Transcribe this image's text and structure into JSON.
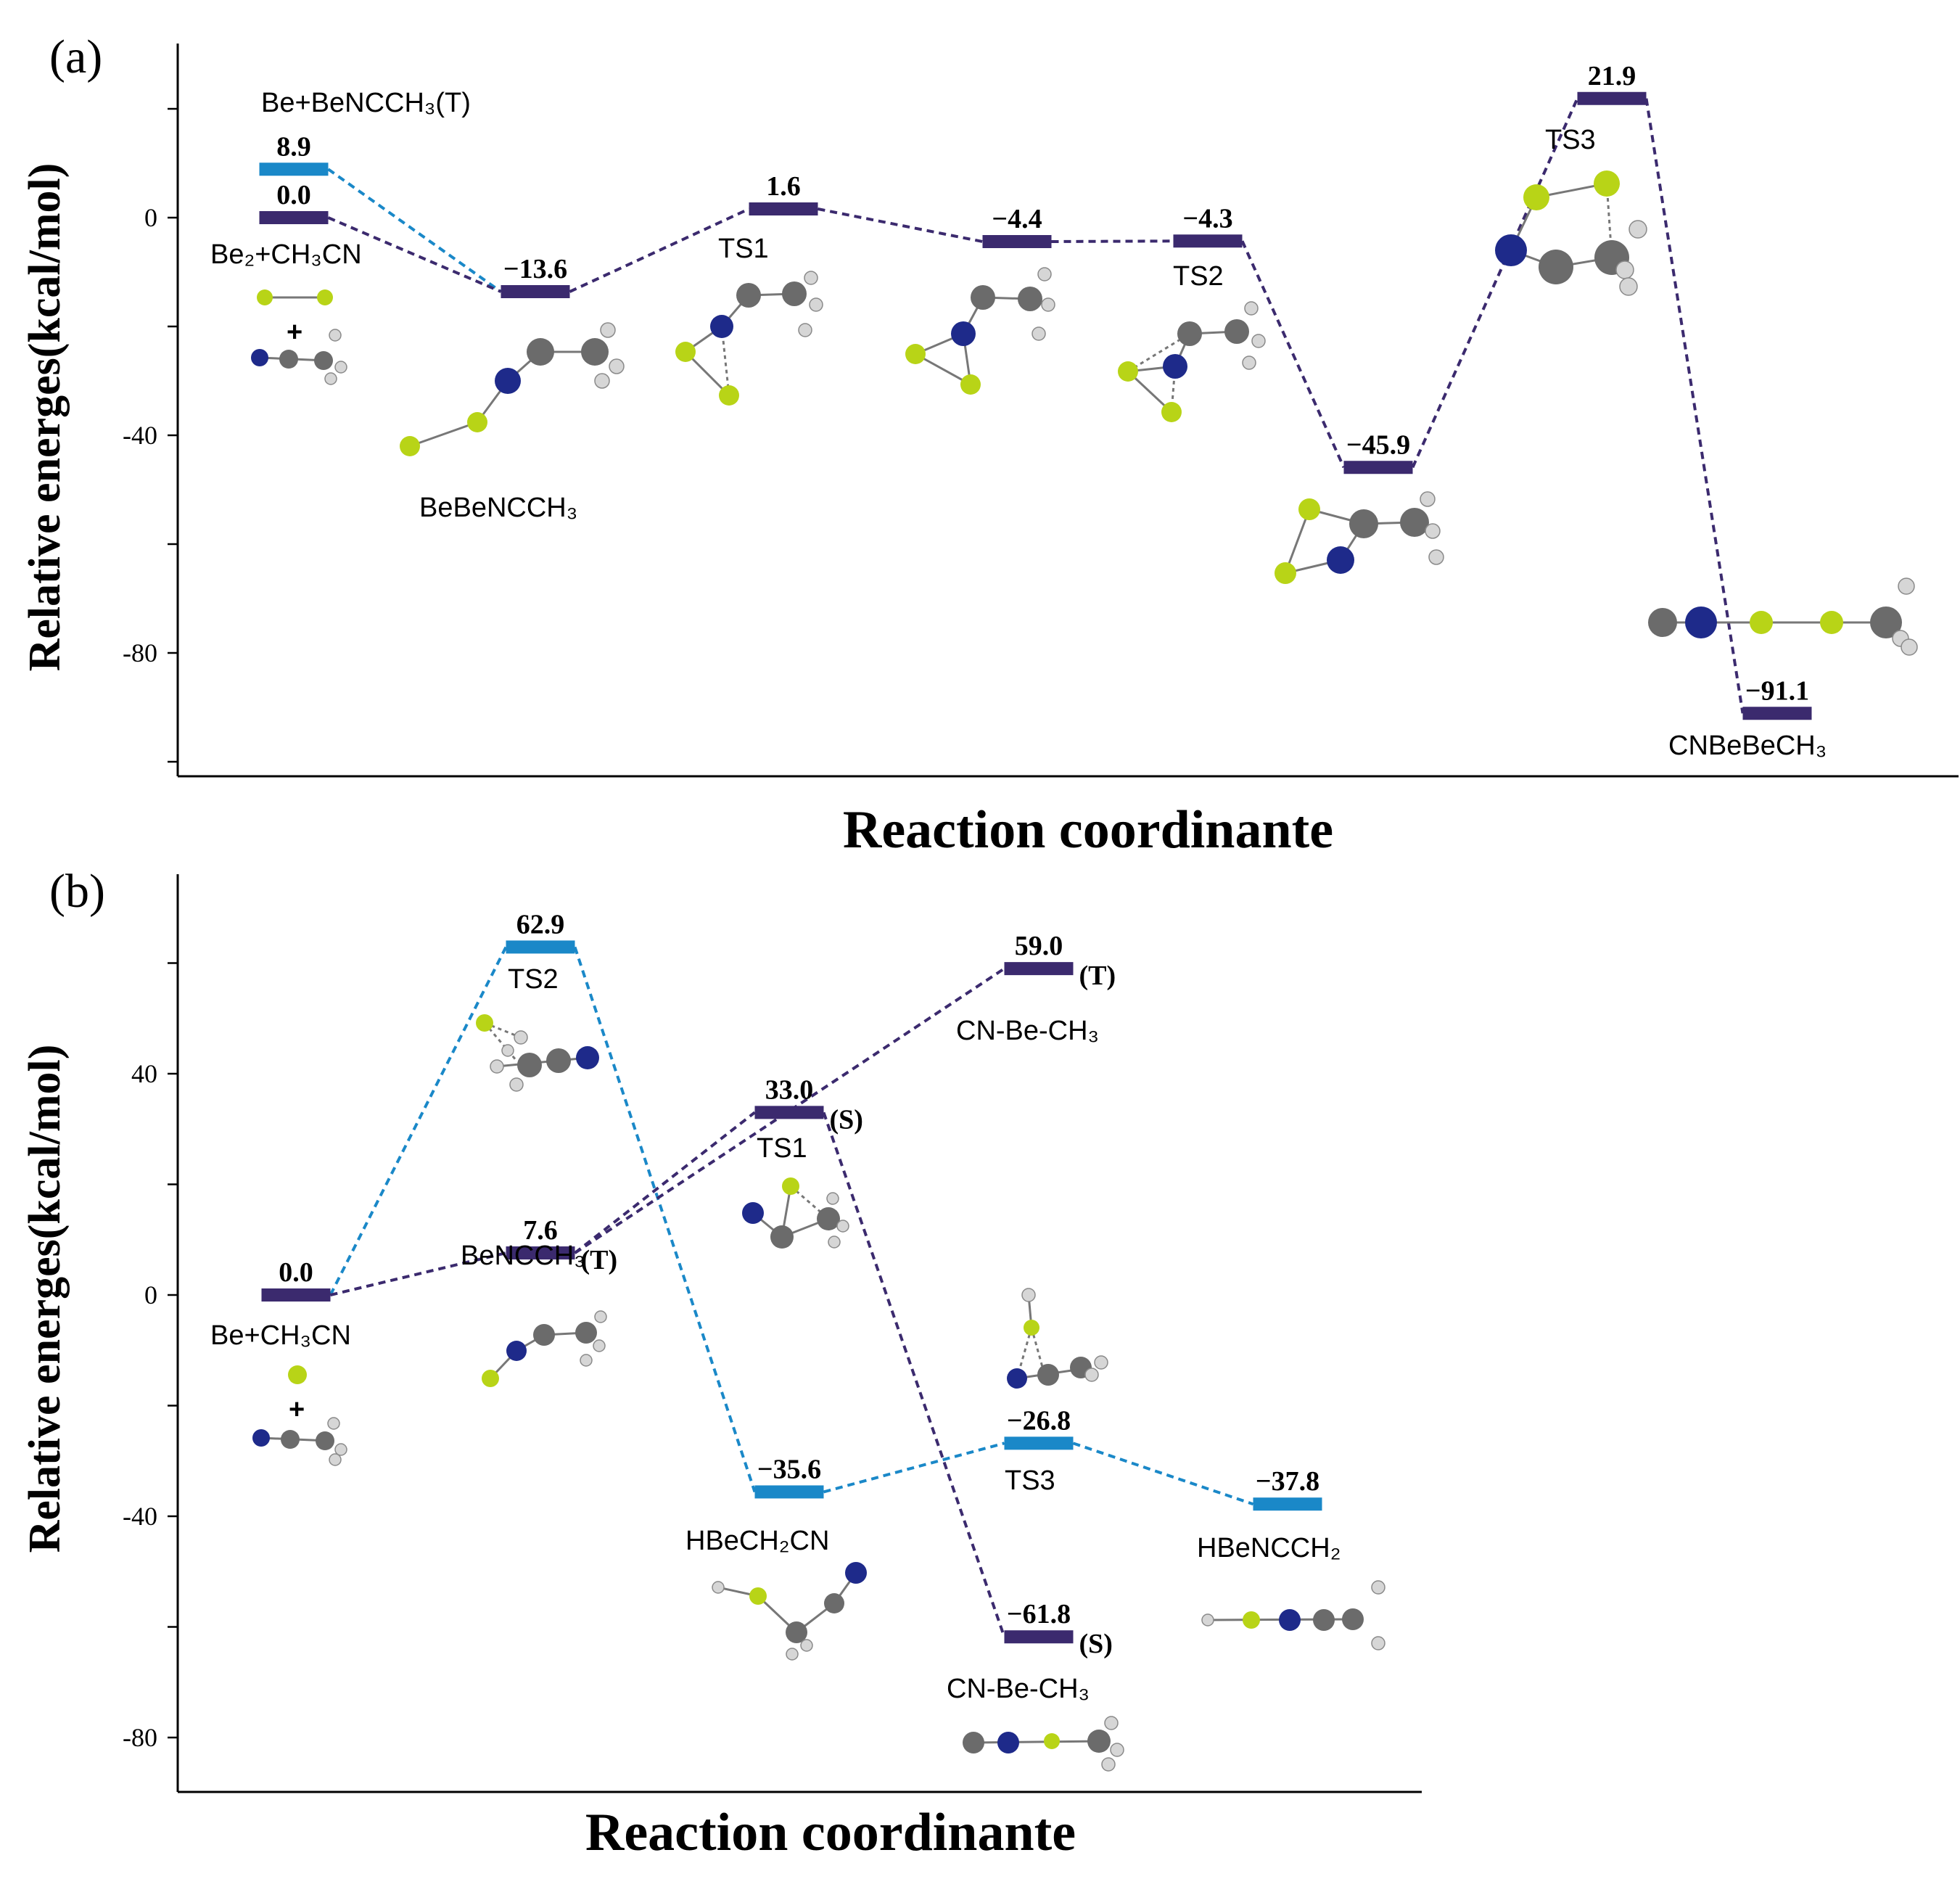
{
  "colors": {
    "purple": "#3b2a6e",
    "blue": "#1a88c8"
  },
  "chart_data": [
    {
      "type": "energy-profile",
      "panel": "(a)",
      "xlabel": "Reaction coordinante",
      "ylabel": "Relative energes(kcal/mol)",
      "ylim": [
        -102,
        28
      ],
      "yticks": [
        0,
        -40,
        -80
      ],
      "ytick_labels": [
        "0",
        "-40",
        "-80"
      ],
      "levels": [
        {
          "id": "be-benccch3",
          "x": 1,
          "energy": 8.9,
          "label": "8.9",
          "name": "Be+BeNCCH₃(T)",
          "color": "blue"
        },
        {
          "id": "be2-ch3cn",
          "x": 1,
          "energy": 0.0,
          "label": "0.0",
          "name": "Be₂+CH₃CN",
          "color": "purple"
        },
        {
          "id": "bebenccch3",
          "x": 2,
          "energy": -13.6,
          "label": "−13.6",
          "name": "BeBeNCCH₃",
          "color": "purple"
        },
        {
          "id": "ts1",
          "x": 3,
          "energy": 1.6,
          "label": "1.6",
          "name": "TS1",
          "color": "purple"
        },
        {
          "id": "int1",
          "x": 4,
          "energy": -4.4,
          "label": "−4.4",
          "name": "",
          "color": "purple"
        },
        {
          "id": "ts2",
          "x": 5,
          "energy": -4.3,
          "label": "−4.3",
          "name": "TS2",
          "color": "purple"
        },
        {
          "id": "int2",
          "x": 6,
          "energy": -45.9,
          "label": "−45.9",
          "name": "",
          "color": "purple"
        },
        {
          "id": "ts3",
          "x": 7,
          "energy": 21.9,
          "label": "21.9",
          "name": "TS3",
          "color": "purple"
        },
        {
          "id": "cnbebech3",
          "x": 8,
          "energy": -91.1,
          "label": "−91.1",
          "name": "CNBeBeCH₃",
          "color": "purple"
        }
      ],
      "connections": [
        {
          "from": "be-benccch3",
          "to": "bebenccch3",
          "color": "blue"
        },
        {
          "from": "be2-ch3cn",
          "to": "bebenccch3",
          "color": "purple"
        },
        {
          "from": "bebenccch3",
          "to": "ts1",
          "color": "purple"
        },
        {
          "from": "ts1",
          "to": "int1",
          "color": "purple"
        },
        {
          "from": "int1",
          "to": "ts2",
          "color": "purple"
        },
        {
          "from": "ts2",
          "to": "int2",
          "color": "purple"
        },
        {
          "from": "int2",
          "to": "ts3",
          "color": "purple"
        },
        {
          "from": "ts3",
          "to": "cnbebech3",
          "color": "purple"
        }
      ]
    },
    {
      "type": "energy-profile",
      "panel": "(b)",
      "xlabel": "Reaction coordinante",
      "ylabel": "Relative energes(kcal/mol)",
      "ylim": [
        -89,
        75
      ],
      "yticks": [
        40,
        0,
        -40,
        -80
      ],
      "ytick_labels": [
        "40",
        "0",
        "-40",
        "-80"
      ],
      "levels": [
        {
          "id": "be-ch3cn",
          "x": 1,
          "energy": 0.0,
          "label": "0.0",
          "name": "Be+CH₃CN",
          "state": "",
          "color": "purple"
        },
        {
          "id": "ts2b",
          "x": 2,
          "energy": 62.9,
          "label": "62.9",
          "name": "TS2",
          "state": "",
          "color": "blue"
        },
        {
          "id": "benccch3",
          "x": 2,
          "energy": 7.6,
          "label": "7.6",
          "name": "BeNCCH₃",
          "state": "(T)",
          "color": "purple"
        },
        {
          "id": "ts1b",
          "x": 3,
          "energy": 33.0,
          "label": "33.0",
          "name": "TS1",
          "state": "(S)",
          "color": "purple"
        },
        {
          "id": "hbech2cn",
          "x": 3,
          "energy": -35.6,
          "label": "−35.6",
          "name": "HBeCH₂CN",
          "state": "",
          "color": "blue"
        },
        {
          "id": "cnbech3-t",
          "x": 4,
          "energy": 59.0,
          "label": "59.0",
          "name": "CN-Be-CH₃",
          "state": "(T)",
          "color": "purple"
        },
        {
          "id": "ts3b",
          "x": 4,
          "energy": -26.8,
          "label": "−26.8",
          "name": "TS3",
          "state": "",
          "color": "blue"
        },
        {
          "id": "cnbech3-s",
          "x": 4,
          "energy": -61.8,
          "label": "−61.8",
          "name": "CN-Be-CH₃",
          "state": "(S)",
          "color": "purple"
        },
        {
          "id": "hbenccch2",
          "x": 5,
          "energy": -37.8,
          "label": "−37.8",
          "name": "HBeNCCH₂",
          "state": "",
          "color": "blue"
        }
      ],
      "connections": [
        {
          "from": "be-ch3cn",
          "to": "ts2b",
          "color": "blue"
        },
        {
          "from": "ts2b",
          "to": "hbech2cn",
          "color": "blue"
        },
        {
          "from": "hbech2cn",
          "to": "ts3b",
          "color": "blue"
        },
        {
          "from": "ts3b",
          "to": "hbenccch2",
          "color": "blue"
        },
        {
          "from": "be-ch3cn",
          "to": "benccch3",
          "color": "purple"
        },
        {
          "from": "benccch3",
          "to": "ts1b",
          "color": "purple"
        },
        {
          "from": "benccch3",
          "to": "cnbech3-t",
          "color": "purple"
        },
        {
          "from": "ts1b",
          "to": "cnbech3-s",
          "color": "purple"
        }
      ]
    }
  ]
}
